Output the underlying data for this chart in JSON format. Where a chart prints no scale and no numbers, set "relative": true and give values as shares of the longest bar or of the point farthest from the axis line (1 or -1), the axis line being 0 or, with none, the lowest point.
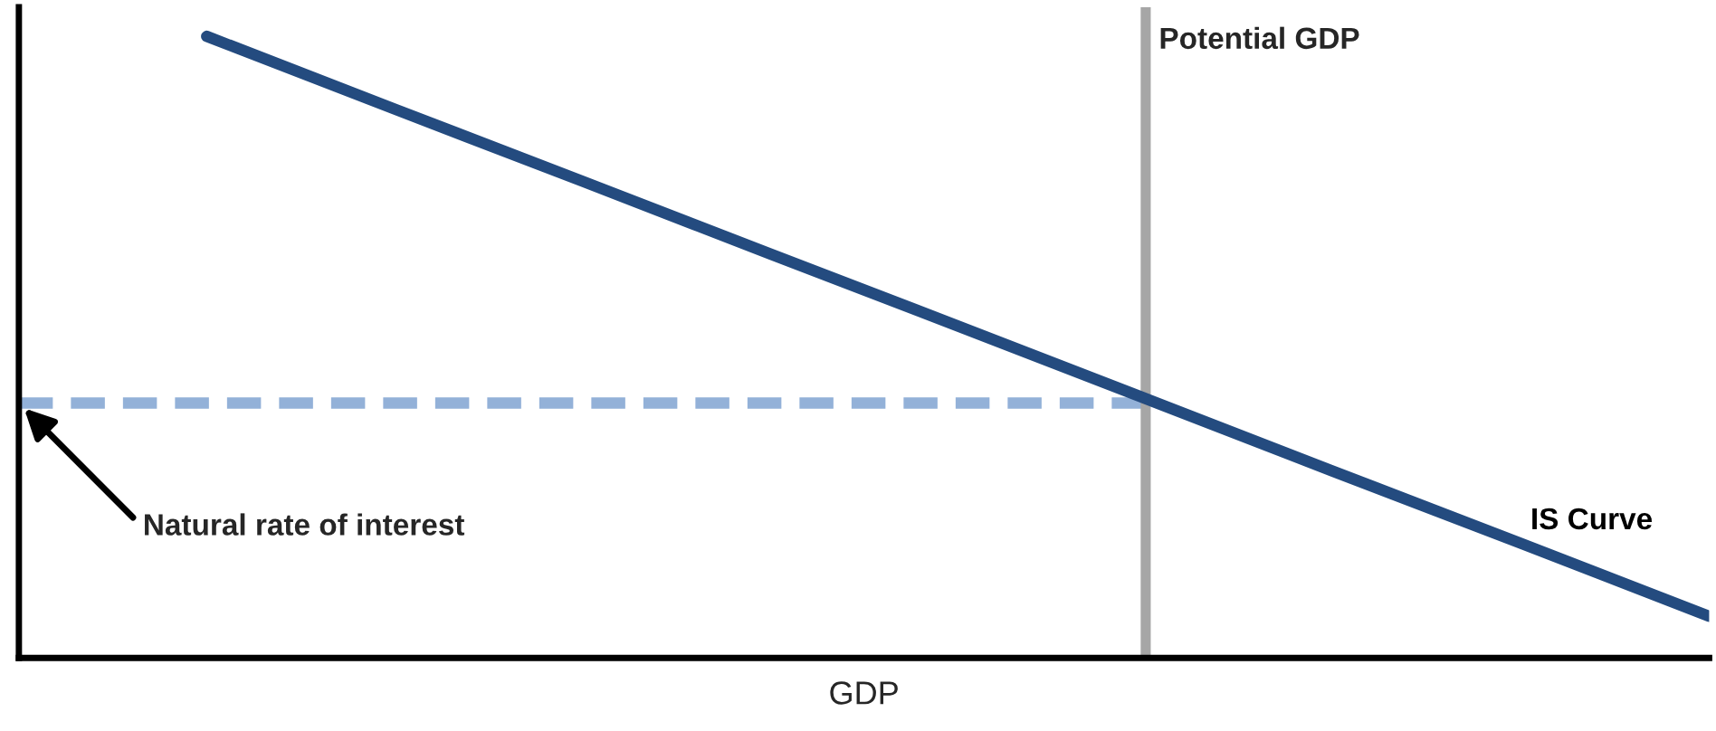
{
  "chart_data": {
    "type": "line",
    "relative": true,
    "xlabel": "GDP",
    "legend": false,
    "categories": [
      null,
      null,
      null,
      null,
      null,
      null,
      null,
      null,
      null,
      null
    ],
    "series": [
      {
        "name": "IS Curve",
        "color": "#244b7f",
        "values": [
          null,
          1,
          0.883,
          0.767,
          0.65,
          0.534,
          0.417,
          0.3,
          0.184,
          0.067
        ]
      },
      {
        "color": "#93b1d8",
        "values": [
          0.41,
          0.41,
          0.41,
          0.41,
          0.41,
          0.41,
          0.41,
          null,
          null,
          null
        ],
        "line_style": "dashed"
      }
    ],
    "annotations": [
      "Potential GDP",
      "Natural rate of interest"
    ]
  }
}
